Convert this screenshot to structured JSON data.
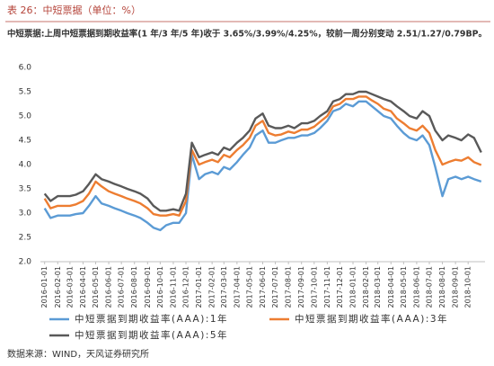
{
  "chart_data": {
    "type": "line",
    "title": "表 26：中短票据（单位：%）",
    "subtitle": "中短票据:上周中短票据到期收益率(1 年/3 年/5 年)收于 3.65%/3.99%/4.25%，较前一周分别变动 2.51/1.27/0.79BP。",
    "source": "数据来源：WIND，天风证券研究所",
    "x": [
      "2016-01-01",
      "2016-01-15",
      "2016-02-01",
      "2016-02-15",
      "2016-03-01",
      "2016-03-15",
      "2016-04-01",
      "2016-04-15",
      "2016-05-01",
      "2016-05-15",
      "2016-06-01",
      "2016-06-15",
      "2016-07-01",
      "2016-07-15",
      "2016-08-01",
      "2016-08-15",
      "2016-09-01",
      "2016-09-15",
      "2016-10-01",
      "2016-10-15",
      "2016-11-01",
      "2016-11-15",
      "2016-12-01",
      "2016-12-15",
      "2017-01-01",
      "2017-01-15",
      "2017-02-01",
      "2017-02-15",
      "2017-03-01",
      "2017-03-15",
      "2017-04-01",
      "2017-04-15",
      "2017-05-01",
      "2017-05-15",
      "2017-06-01",
      "2017-06-15",
      "2017-07-01",
      "2017-07-15",
      "2017-08-01",
      "2017-08-15",
      "2017-09-01",
      "2017-09-15",
      "2017-10-01",
      "2017-10-15",
      "2017-11-01",
      "2017-11-15",
      "2017-12-01",
      "2017-12-15",
      "2018-01-01",
      "2018-01-15",
      "2018-02-01",
      "2018-02-15",
      "2018-03-01",
      "2018-03-15",
      "2018-04-01",
      "2018-04-15",
      "2018-05-01",
      "2018-05-15",
      "2018-06-01",
      "2018-06-15",
      "2018-07-01",
      "2018-07-15",
      "2018-08-01",
      "2018-08-15",
      "2018-09-01",
      "2018-09-15",
      "2018-10-01",
      "2018-10-15",
      "2018-11-01"
    ],
    "series": [
      {
        "name": "中短票据到期收益率(AAA):1年",
        "color": "#5b9bd5",
        "values": [
          3.1,
          2.9,
          2.95,
          2.95,
          2.95,
          2.98,
          3.0,
          3.15,
          3.35,
          3.2,
          3.15,
          3.1,
          3.05,
          3.0,
          2.95,
          2.9,
          2.8,
          2.7,
          2.65,
          2.75,
          2.8,
          2.8,
          3.0,
          4.2,
          3.7,
          3.8,
          3.85,
          3.8,
          3.95,
          3.9,
          4.05,
          4.2,
          4.35,
          4.6,
          4.7,
          4.45,
          4.45,
          4.5,
          4.55,
          4.55,
          4.6,
          4.6,
          4.65,
          4.75,
          4.9,
          5.1,
          5.15,
          5.25,
          5.2,
          5.3,
          5.3,
          5.2,
          5.1,
          5.0,
          4.95,
          4.8,
          4.65,
          4.55,
          4.5,
          4.6,
          4.4,
          3.95,
          3.35,
          3.7,
          3.75,
          3.7,
          3.75,
          3.7,
          3.65
        ]
      },
      {
        "name": "中短票据到期收益率(AAA):3年",
        "color": "#ed7d31",
        "values": [
          3.3,
          3.1,
          3.15,
          3.15,
          3.15,
          3.18,
          3.25,
          3.4,
          3.65,
          3.55,
          3.45,
          3.4,
          3.35,
          3.3,
          3.25,
          3.2,
          3.1,
          2.98,
          2.95,
          2.95,
          2.98,
          2.95,
          3.25,
          4.3,
          4.0,
          4.05,
          4.1,
          4.05,
          4.2,
          4.15,
          4.3,
          4.4,
          4.55,
          4.8,
          4.9,
          4.65,
          4.6,
          4.62,
          4.68,
          4.65,
          4.72,
          4.72,
          4.78,
          4.88,
          5.0,
          5.2,
          5.25,
          5.35,
          5.35,
          5.4,
          5.4,
          5.32,
          5.25,
          5.15,
          5.1,
          4.95,
          4.85,
          4.75,
          4.7,
          4.8,
          4.65,
          4.3,
          4.0,
          4.05,
          4.1,
          4.08,
          4.15,
          4.05,
          3.99
        ]
      },
      {
        "name": "中短票据到期收益率(AAA):5年",
        "color": "#595959",
        "values": [
          3.4,
          3.25,
          3.35,
          3.35,
          3.35,
          3.38,
          3.45,
          3.6,
          3.8,
          3.7,
          3.65,
          3.6,
          3.55,
          3.5,
          3.45,
          3.4,
          3.3,
          3.15,
          3.05,
          3.05,
          3.08,
          3.05,
          3.4,
          4.45,
          4.15,
          4.2,
          4.25,
          4.2,
          4.35,
          4.3,
          4.45,
          4.55,
          4.7,
          4.95,
          5.05,
          4.8,
          4.75,
          4.75,
          4.8,
          4.75,
          4.85,
          4.85,
          4.9,
          5.0,
          5.1,
          5.3,
          5.35,
          5.45,
          5.45,
          5.5,
          5.5,
          5.45,
          5.4,
          5.35,
          5.3,
          5.2,
          5.1,
          5.0,
          4.95,
          5.1,
          5.0,
          4.7,
          4.5,
          4.6,
          4.55,
          4.5,
          4.62,
          4.55,
          4.25
        ]
      }
    ],
    "xlim": [
      "2015-12-22",
      "2018-11-10"
    ],
    "xticks": [
      "2016-01-01",
      "2016-02-01",
      "2016-03-01",
      "2016-04-01",
      "2016-05-01",
      "2016-06-01",
      "2016-07-01",
      "2016-08-01",
      "2016-09-01",
      "2016-10-01",
      "2016-11-01",
      "2016-12-01",
      "2017-01-01",
      "2017-02-01",
      "2017-03-01",
      "2017-04-01",
      "2017-05-01",
      "2017-06-01",
      "2017-07-01",
      "2017-08-01",
      "2017-09-01",
      "2017-10-01",
      "2017-11-01",
      "2017-12-01",
      "2018-01-01",
      "2018-02-01",
      "2018-03-01",
      "2018-04-01",
      "2018-05-01",
      "2018-06-01",
      "2018-07-01",
      "2018-08-01",
      "2018-09-01",
      "2018-10-01"
    ],
    "ylim": [
      2,
      6
    ],
    "yticks": [
      {
        "value": 2,
        "label": "2.0"
      },
      2.5,
      {
        "value": 3,
        "label": "3.0"
      },
      3.5,
      {
        "value": 4,
        "label": "4.0"
      },
      4.5,
      {
        "value": 5,
        "label": "5.0"
      },
      5.5,
      {
        "value": 6,
        "label": "6.0"
      }
    ],
    "grid": false
  }
}
